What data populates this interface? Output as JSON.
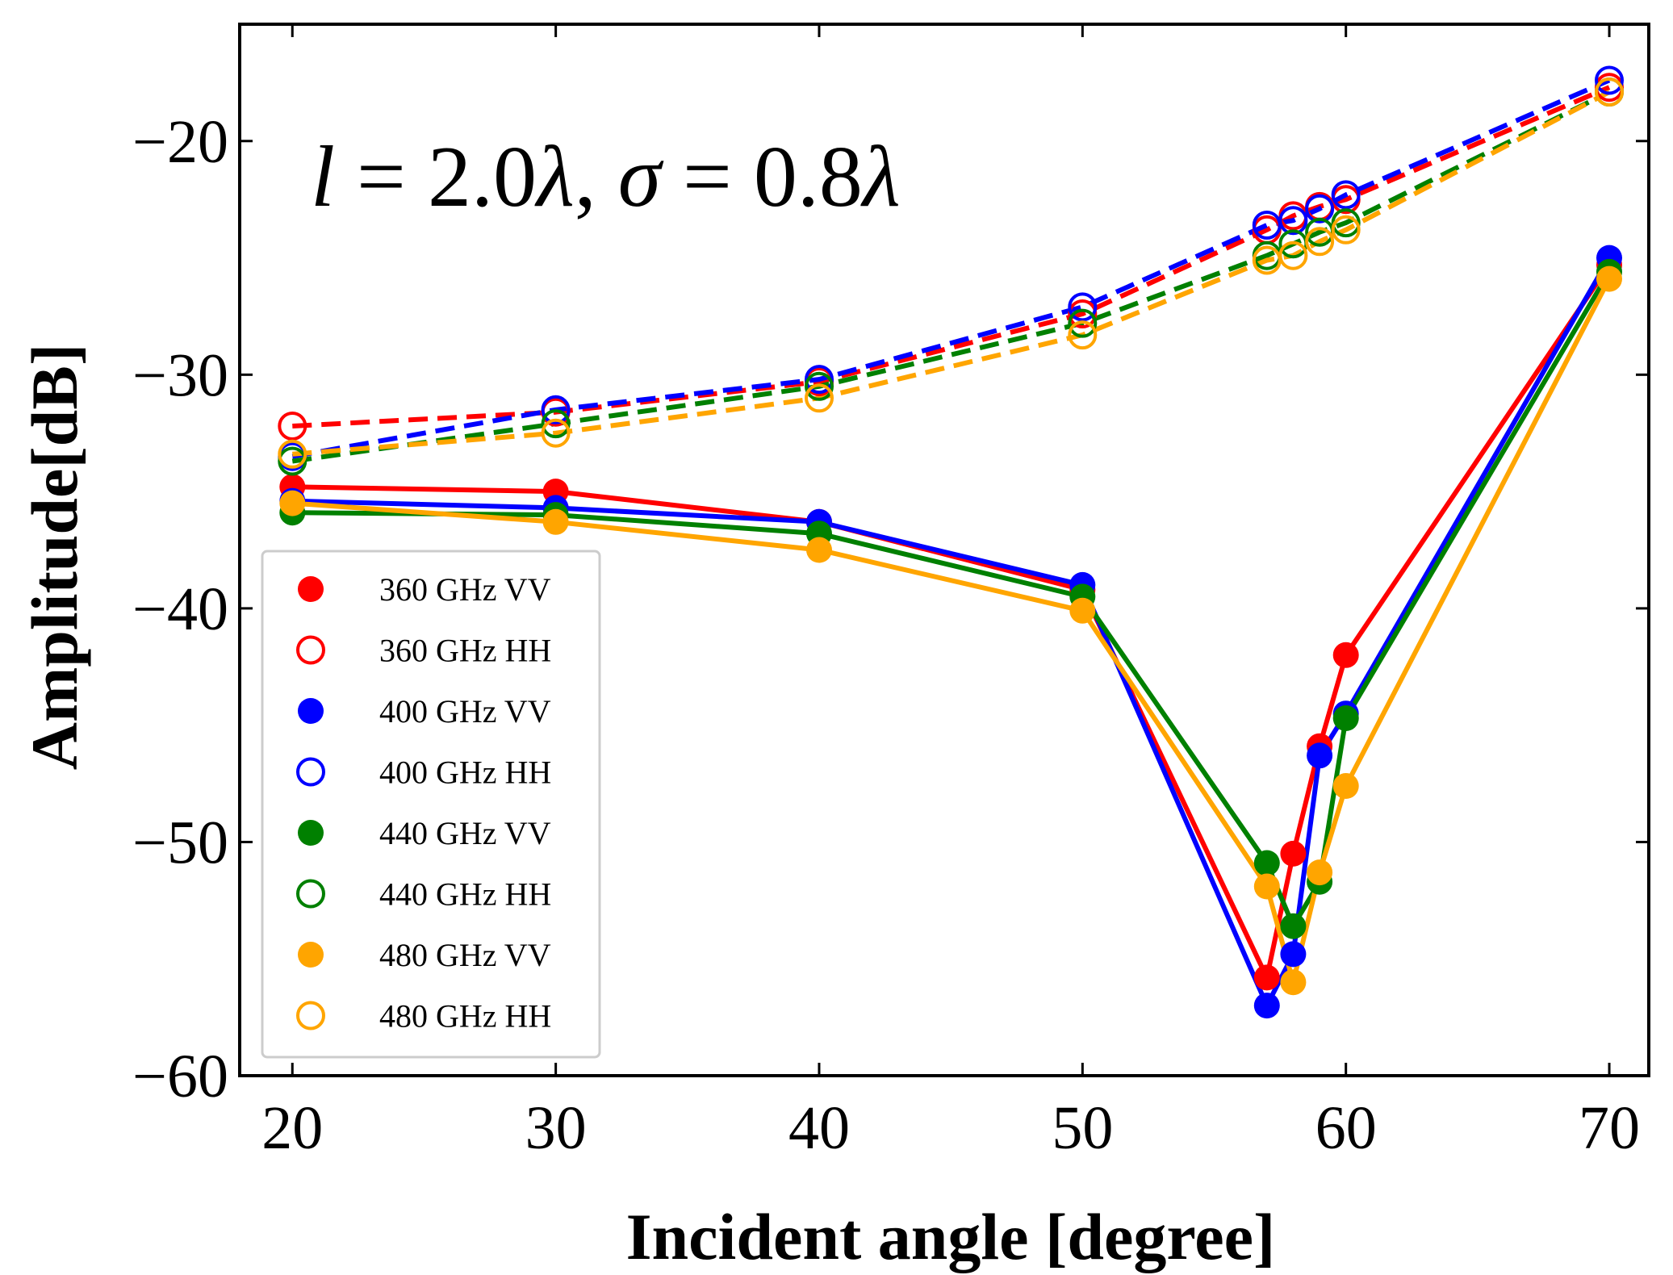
{
  "chart_data": {
    "type": "line",
    "title": "",
    "annotation": "l = 2.0λ, σ = 0.8λ",
    "xlabel": "Incident angle [degree]",
    "ylabel": "Amplitude[dB]",
    "xlim": [
      18,
      71.5
    ],
    "ylim": [
      -60,
      -15
    ],
    "xticks": [
      20,
      30,
      40,
      50,
      60,
      70
    ],
    "yticks": [
      -20,
      -30,
      -40,
      -50,
      -60
    ],
    "xtick_labels": [
      "20",
      "30",
      "40",
      "50",
      "60",
      "70"
    ],
    "ytick_labels": [
      "−20",
      "−30",
      "−40",
      "−50",
      "−60"
    ],
    "x": [
      20,
      30,
      40,
      50,
      57,
      58,
      59,
      60,
      70
    ],
    "legend_position": "lower-left",
    "series": [
      {
        "name": "360 GHz VV",
        "color": "#ff0000",
        "style": "solid",
        "marker": "filled",
        "values": [
          -34.8,
          -35.0,
          -36.3,
          -39.2,
          -55.8,
          -50.5,
          -45.9,
          -42.0,
          -25.3
        ]
      },
      {
        "name": "360 GHz HH",
        "color": "#ff0000",
        "style": "dashed",
        "marker": "open",
        "values": [
          -32.2,
          -31.6,
          -30.3,
          -27.4,
          -23.8,
          -23.2,
          -22.8,
          -22.5,
          -17.7
        ]
      },
      {
        "name": "400 GHz VV",
        "color": "#0000ff",
        "style": "solid",
        "marker": "filled",
        "values": [
          -35.4,
          -35.7,
          -36.3,
          -39.0,
          -57.0,
          -54.8,
          -46.3,
          -44.5,
          -25.0
        ]
      },
      {
        "name": "400 GHz HH",
        "color": "#0000ff",
        "style": "dashed",
        "marker": "open",
        "values": [
          -33.5,
          -31.5,
          -30.2,
          -27.1,
          -23.6,
          -23.4,
          -22.9,
          -22.3,
          -17.4
        ]
      },
      {
        "name": "440 GHz VV",
        "color": "#008000",
        "style": "solid",
        "marker": "filled",
        "values": [
          -35.9,
          -36.0,
          -36.8,
          -39.5,
          -50.9,
          -53.6,
          -51.7,
          -44.7,
          -25.6
        ]
      },
      {
        "name": "440 GHz HH",
        "color": "#008000",
        "style": "dashed",
        "marker": "open",
        "values": [
          -33.7,
          -32.1,
          -30.5,
          -27.8,
          -24.9,
          -24.4,
          -23.9,
          -23.5,
          -17.9
        ]
      },
      {
        "name": "480 GHz VV",
        "color": "#ffa500",
        "style": "solid",
        "marker": "filled",
        "values": [
          -35.5,
          -36.3,
          -37.5,
          -40.1,
          -51.9,
          -56.0,
          -51.3,
          -47.6,
          -25.9
        ]
      },
      {
        "name": "480 GHz HH",
        "color": "#ffa500",
        "style": "dashed",
        "marker": "open",
        "values": [
          -33.4,
          -32.5,
          -31.0,
          -28.3,
          -25.1,
          -24.9,
          -24.3,
          -23.8,
          -17.9
        ]
      }
    ]
  }
}
